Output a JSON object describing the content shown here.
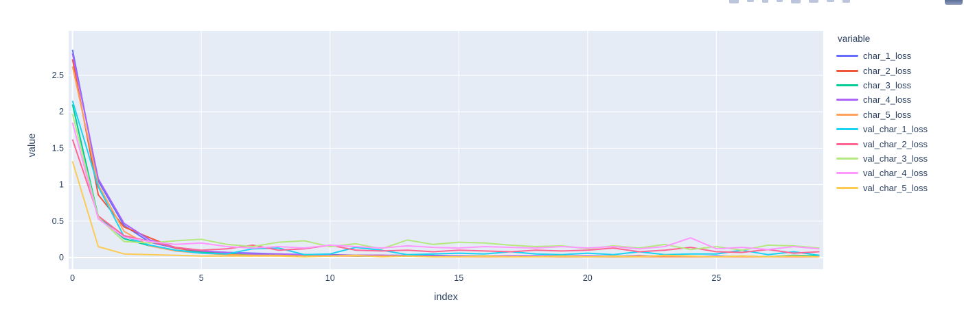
{
  "figure": {
    "background": "#ffffff",
    "modebar_icons": [
      "modebar-icon",
      "modebar-icon",
      "modebar-icon",
      "modebar-icon",
      "modebar-icon",
      "modebar-icon",
      "modebar-icon",
      "modebar-icon"
    ]
  },
  "chart_data": {
    "type": "line",
    "title": "",
    "xlabel": "index",
    "ylabel": "value",
    "legend_title": "variable",
    "legend_position": "right",
    "grid": true,
    "plot_bg": "#E5ECF6",
    "grid_color": "#ffffff",
    "font_color": "#2a3f5f",
    "line_width": 2,
    "xticks": [
      0,
      5,
      10,
      15,
      20,
      25
    ],
    "yticks": [
      0,
      0.5,
      1,
      1.5,
      2,
      2.5
    ],
    "xlim": [
      -0.15,
      29.15
    ],
    "ylim": [
      -0.16,
      3.11
    ],
    "x": [
      0,
      1,
      2,
      3,
      4,
      5,
      6,
      7,
      8,
      9,
      10,
      11,
      12,
      13,
      14,
      15,
      16,
      17,
      18,
      19,
      20,
      21,
      22,
      23,
      24,
      25,
      26,
      27,
      28,
      29
    ],
    "series": [
      {
        "name": "char_1_loss",
        "color": "#636EFA",
        "values": [
          2.85,
          1.05,
          0.44,
          0.21,
          0.13,
          0.09,
          0.07,
          0.06,
          0.05,
          0.04,
          0.04,
          0.03,
          0.03,
          0.03,
          0.03,
          0.02,
          0.02,
          0.02,
          0.02,
          0.02,
          0.02,
          0.02,
          0.02,
          0.02,
          0.01,
          0.02,
          0.01,
          0.01,
          0.02,
          0.01
        ]
      },
      {
        "name": "char_2_loss",
        "color": "#EF553B",
        "values": [
          2.72,
          0.86,
          0.42,
          0.27,
          0.13,
          0.08,
          0.06,
          0.05,
          0.04,
          0.04,
          0.03,
          0.03,
          0.03,
          0.02,
          0.02,
          0.02,
          0.02,
          0.02,
          0.02,
          0.02,
          0.02,
          0.01,
          0.02,
          0.01,
          0.01,
          0.01,
          0.01,
          0.01,
          0.01,
          0.01
        ]
      },
      {
        "name": "char_3_loss",
        "color": "#00CC96",
        "values": [
          2.1,
          0.56,
          0.26,
          0.16,
          0.1,
          0.07,
          0.05,
          0.04,
          0.04,
          0.03,
          0.03,
          0.02,
          0.02,
          0.02,
          0.02,
          0.02,
          0.02,
          0.01,
          0.02,
          0.01,
          0.01,
          0.01,
          0.01,
          0.01,
          0.01,
          0.01,
          0.02,
          0.01,
          0.03,
          0.02
        ]
      },
      {
        "name": "char_4_loss",
        "color": "#AB63FA",
        "values": [
          2.8,
          1.08,
          0.47,
          0.24,
          0.14,
          0.09,
          0.07,
          0.05,
          0.05,
          0.04,
          0.03,
          0.03,
          0.03,
          0.02,
          0.02,
          0.02,
          0.02,
          0.02,
          0.02,
          0.02,
          0.02,
          0.02,
          0.01,
          0.01,
          0.01,
          0.01,
          0.01,
          0.01,
          0.01,
          0.01
        ]
      },
      {
        "name": "char_5_loss",
        "color": "#FFA15A",
        "values": [
          2.62,
          1.0,
          0.36,
          0.16,
          0.09,
          0.06,
          0.04,
          0.03,
          0.03,
          0.02,
          0.02,
          0.02,
          0.02,
          0.02,
          0.01,
          0.01,
          0.01,
          0.01,
          0.01,
          0.01,
          0.01,
          0.01,
          0.01,
          0.01,
          0.01,
          0.01,
          0.01,
          0.01,
          0.01,
          0.01
        ]
      },
      {
        "name": "val_char_1_loss",
        "color": "#19D3F3",
        "values": [
          2.15,
          0.97,
          0.29,
          0.17,
          0.1,
          0.06,
          0.05,
          0.12,
          0.13,
          0.04,
          0.05,
          0.14,
          0.1,
          0.04,
          0.05,
          0.06,
          0.05,
          0.08,
          0.05,
          0.04,
          0.06,
          0.04,
          0.08,
          0.04,
          0.05,
          0.05,
          0.1,
          0.04,
          0.08,
          0.03
        ]
      },
      {
        "name": "val_char_2_loss",
        "color": "#FF6692",
        "values": [
          1.62,
          0.57,
          0.3,
          0.22,
          0.14,
          0.1,
          0.12,
          0.17,
          0.1,
          0.12,
          0.17,
          0.1,
          0.09,
          0.1,
          0.08,
          0.1,
          0.09,
          0.08,
          0.1,
          0.09,
          0.1,
          0.13,
          0.08,
          0.1,
          0.14,
          0.08,
          0.07,
          0.11,
          0.06,
          0.08
        ]
      },
      {
        "name": "val_char_3_loss",
        "color": "#B6E880",
        "values": [
          1.97,
          0.55,
          0.22,
          0.2,
          0.23,
          0.25,
          0.18,
          0.15,
          0.21,
          0.23,
          0.15,
          0.19,
          0.12,
          0.24,
          0.18,
          0.21,
          0.2,
          0.17,
          0.15,
          0.16,
          0.12,
          0.16,
          0.13,
          0.18,
          0.11,
          0.15,
          0.1,
          0.17,
          0.16,
          0.13
        ]
      },
      {
        "name": "val_char_4_loss",
        "color": "#FF97FF",
        "values": [
          1.85,
          0.53,
          0.28,
          0.22,
          0.18,
          0.2,
          0.15,
          0.13,
          0.15,
          0.13,
          0.17,
          0.15,
          0.13,
          0.16,
          0.14,
          0.13,
          0.15,
          0.14,
          0.13,
          0.15,
          0.13,
          0.15,
          0.12,
          0.15,
          0.27,
          0.12,
          0.14,
          0.11,
          0.15,
          0.12
        ]
      },
      {
        "name": "val_char_5_loss",
        "color": "#FECB52",
        "values": [
          1.32,
          0.15,
          0.05,
          0.04,
          0.03,
          0.02,
          0.02,
          0.02,
          0.02,
          0.01,
          0.02,
          0.03,
          0.01,
          0.02,
          0.01,
          0.01,
          0.02,
          0.01,
          0.01,
          0.02,
          0.01,
          0.02,
          0.01,
          0.03,
          0.02,
          0.01,
          0.02,
          0.01,
          0.02,
          0.01
        ]
      }
    ]
  }
}
